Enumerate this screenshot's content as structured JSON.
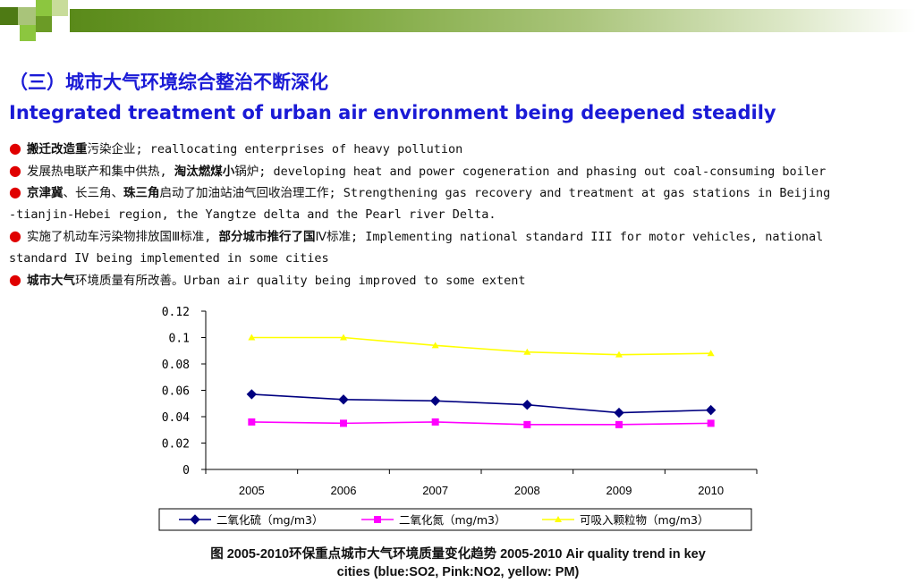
{
  "header": {
    "title_cn": "（三）城市大气环境综合整治不断深化",
    "title_en": "Integrated treatment of urban air environment being deepened steadily"
  },
  "bullets": [
    {
      "parts": [
        {
          "t": "搬迁改造重",
          "b": true
        },
        {
          "t": "污染企业; reallocating enterprises of heavy pollution",
          "b": false
        }
      ]
    },
    {
      "parts": [
        {
          "t": "发展热电联产和集中供热, ",
          "b": false
        },
        {
          "t": "淘汰燃煤小",
          "b": true
        },
        {
          "t": "锅炉; developing heat and power cogeneration and phasing out coal-consuming boiler",
          "b": false
        }
      ]
    },
    {
      "parts": [
        {
          "t": "京津冀",
          "b": true
        },
        {
          "t": "、长三角、",
          "b": false
        },
        {
          "t": "珠三角",
          "b": true
        },
        {
          "t": "启动了加油站油气回收治理工作; Strengthening gas recovery and treatment at gas stations in Beijing",
          "b": false
        }
      ]
    },
    {
      "parts": [
        {
          "t": "-tianjin-Hebei region, the Yangtze delta and the Pearl river Delta.",
          "b": false
        }
      ],
      "nodot": true
    },
    {
      "parts": [
        {
          "t": "实施了机动车污染物排放国Ⅲ标准, ",
          "b": false
        },
        {
          "t": "部分城市推行了国",
          "b": true
        },
        {
          "t": "Ⅳ标准; Implementing national standard III for motor vehicles, national",
          "b": false
        }
      ]
    },
    {
      "parts": [
        {
          "t": "standard IV being implemented in some cities",
          "b": false
        }
      ],
      "nodot": true
    },
    {
      "parts": [
        {
          "t": "城市大气",
          "b": true
        },
        {
          "t": "环境质量有所改善。Urban air quality being improved to some extent",
          "b": false
        }
      ]
    }
  ],
  "chart_data": {
    "type": "line",
    "x": [
      "2005",
      "2006",
      "2007",
      "2008",
      "2009",
      "2010"
    ],
    "ylim": [
      0,
      0.12
    ],
    "yticks": [
      "0",
      "0.02",
      "0.04",
      "0.06",
      "0.08",
      "0.1",
      "0.12"
    ],
    "ytick_values": [
      0,
      0.02,
      0.04,
      0.06,
      0.08,
      0.1,
      0.12
    ],
    "grid": false,
    "legend_position": "bottom",
    "series": [
      {
        "name": "二氧化硫（mg/m3）",
        "color": "#000080",
        "marker": "diamond",
        "values": [
          0.057,
          0.053,
          0.052,
          0.049,
          0.043,
          0.045
        ]
      },
      {
        "name": "二氧化氮（mg/m3）",
        "color": "#ff00ff",
        "marker": "square",
        "values": [
          0.036,
          0.035,
          0.036,
          0.034,
          0.034,
          0.035
        ]
      },
      {
        "name": "可吸入颗粒物（mg/m3）",
        "color": "#ffff00",
        "marker": "triangle",
        "values": [
          0.1,
          0.1,
          0.094,
          0.089,
          0.087,
          0.088
        ]
      }
    ]
  },
  "caption": {
    "line1": "图   2005-2010环保重点城市大气环境质量变化趋势 2005-2010 Air quality trend in key",
    "line2": "cities (blue:SO2, Pink:NO2, yellow: PM)"
  },
  "colors": {
    "title": "#1a1ad6",
    "bullet": "#e00000",
    "deco_green": "#8cc63f",
    "deco_dark": "#4e7a14"
  }
}
